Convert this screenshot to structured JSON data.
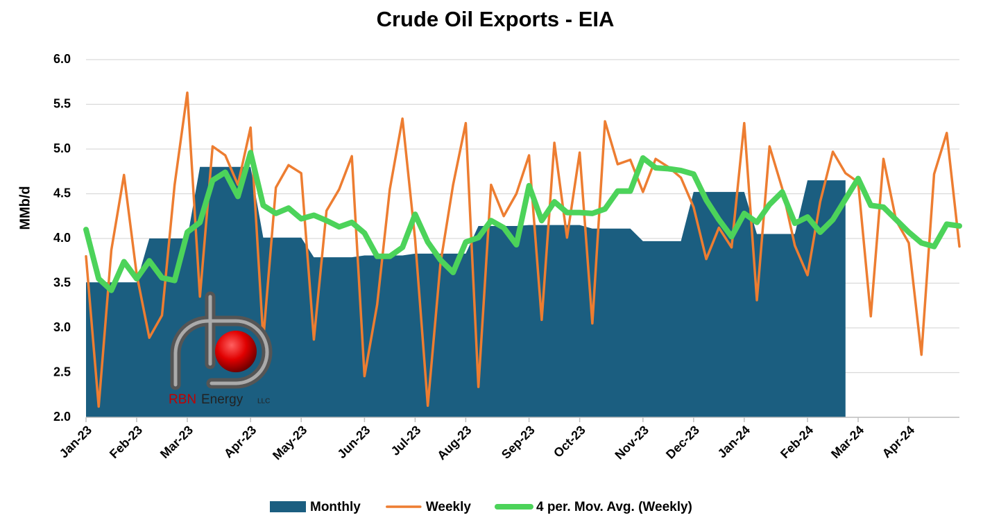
{
  "chart_data": {
    "type": "line",
    "title": "Crude Oil Exports - EIA",
    "y_label": "MMb/d",
    "categories": [
      "Jan-23",
      null,
      null,
      null,
      "Feb-23",
      null,
      null,
      null,
      "Mar-23",
      null,
      null,
      null,
      null,
      "Apr-23",
      null,
      null,
      null,
      "May-23",
      null,
      null,
      null,
      null,
      "Jun-23",
      null,
      null,
      null,
      "Jul-23",
      null,
      null,
      null,
      "Aug-23",
      null,
      null,
      null,
      null,
      "Sep-23",
      null,
      null,
      null,
      "Oct-23",
      null,
      null,
      null,
      null,
      "Nov-23",
      null,
      null,
      null,
      "Dec-23",
      null,
      null,
      null,
      "Jan-24",
      null,
      null,
      null,
      null,
      "Feb-24",
      null,
      null,
      null,
      "Mar-24",
      null,
      null,
      null,
      "Apr-24",
      null,
      null,
      null,
      null
    ],
    "ylim": [
      2,
      6
    ],
    "yticks": [
      {
        "value": 2,
        "label": "2.0"
      },
      2.5,
      {
        "value": 3,
        "label": "3.0"
      },
      3.5,
      {
        "value": 4,
        "label": "4.0"
      },
      4.5,
      {
        "value": 5,
        "label": "5.0"
      },
      5.5,
      {
        "value": 6,
        "label": "6.0"
      }
    ],
    "grid": true,
    "legend": "bottom",
    "series": [
      {
        "name": "Monthly",
        "kind": "area",
        "color": "#1b5e80",
        "values": [
          3.51,
          3.51,
          3.51,
          3.51,
          3.51,
          4.0,
          4.0,
          4.0,
          4.0,
          4.8,
          4.8,
          4.8,
          4.8,
          4.8,
          4.01,
          4.01,
          4.01,
          4.01,
          3.79,
          3.79,
          3.79,
          3.79,
          3.81,
          3.81,
          3.81,
          3.81,
          3.83,
          3.83,
          3.83,
          3.83,
          3.83,
          4.14,
          4.14,
          4.14,
          4.14,
          4.15,
          4.15,
          4.15,
          4.15,
          4.15,
          4.11,
          4.11,
          4.11,
          4.11,
          3.97,
          3.97,
          3.97,
          3.97,
          4.52,
          4.52,
          4.52,
          4.52,
          4.52,
          4.05,
          4.05,
          4.05,
          4.05,
          4.65,
          4.65,
          4.65,
          4.65,
          null,
          null,
          null,
          null,
          null,
          null,
          null,
          null,
          null
        ]
      },
      {
        "name": "Weekly",
        "kind": "line",
        "color": "#ed7d31",
        "values": [
          3.8,
          2.12,
          3.87,
          4.71,
          3.6,
          2.89,
          3.14,
          4.6,
          5.63,
          3.35,
          5.03,
          4.93,
          4.6,
          5.24,
          2.87,
          4.57,
          4.82,
          4.73,
          2.87,
          4.31,
          4.55,
          4.92,
          2.46,
          3.26,
          4.55,
          5.34,
          3.99,
          2.13,
          3.72,
          4.6,
          5.29,
          2.34,
          4.6,
          4.25,
          4.5,
          4.93,
          3.09,
          5.07,
          4.01,
          4.96,
          3.05,
          5.31,
          4.83,
          4.88,
          4.52,
          4.89,
          4.8,
          4.68,
          4.35,
          3.77,
          4.12,
          3.9,
          5.29,
          3.31,
          5.03,
          4.56,
          3.92,
          3.59,
          4.41,
          4.97,
          4.73,
          4.63,
          3.13,
          4.89,
          4.2,
          3.95,
          2.7,
          4.72,
          5.18,
          3.91
        ]
      },
      {
        "name": "4 per. Mov. Avg. (Weekly)",
        "kind": "line",
        "color": "#4cd35a",
        "values": [
          4.1,
          3.55,
          3.42,
          3.74,
          3.55,
          3.75,
          3.56,
          3.53,
          4.07,
          4.18,
          4.65,
          4.74,
          4.47,
          4.96,
          4.37,
          4.28,
          4.34,
          4.22,
          4.26,
          4.2,
          4.13,
          4.18,
          4.06,
          3.8,
          3.8,
          3.9,
          4.27,
          3.96,
          3.76,
          3.62,
          3.96,
          4.01,
          4.2,
          4.12,
          3.93,
          4.59,
          4.2,
          4.41,
          4.29,
          4.29,
          4.28,
          4.33,
          4.53,
          4.53,
          4.9,
          4.79,
          4.78,
          4.76,
          4.72,
          4.43,
          4.21,
          4.02,
          4.28,
          4.18,
          4.38,
          4.52,
          4.17,
          4.24,
          4.07,
          4.21,
          4.44,
          4.67,
          4.37,
          4.35,
          4.21,
          4.07,
          3.95,
          3.91,
          4.16,
          4.14
        ]
      }
    ]
  },
  "logo": {
    "rbn": "RBN",
    "energy": "Energy",
    "llc": "LLC"
  }
}
